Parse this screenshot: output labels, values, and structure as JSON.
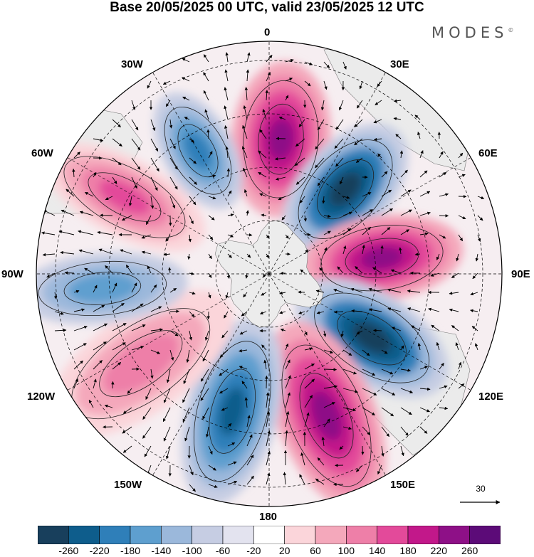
{
  "title": "Base 20/05/2025 00 UTC, valid 23/05/2025 12 UTC",
  "brand": "MODES",
  "brand_mark": "©",
  "longitude_labels": {
    "lon_0": "0",
    "lon_30e": "30E",
    "lon_60e": "60E",
    "lon_90e": "90E",
    "lon_120e": "120E",
    "lon_150e": "150E",
    "lon_180": "180",
    "lon_150w": "150W",
    "lon_120w": "120W",
    "lon_90w": "90W",
    "lon_60w": "60W",
    "lon_30w": "30W"
  },
  "reference_vector": {
    "value": "30"
  },
  "colorbar": {
    "colors": [
      "#183f5c",
      "#0e5d8c",
      "#2f7fb9",
      "#5e9fcf",
      "#9bb8db",
      "#c6cde3",
      "#e3e3ef",
      "#ffffff",
      "#fbd5da",
      "#f4a8bb",
      "#ee7fa8",
      "#e34a9a",
      "#c2188a",
      "#8e1087",
      "#5c0b78"
    ],
    "labels": [
      "-260",
      "-220",
      "-180",
      "-140",
      "-100",
      "-60",
      "-20",
      "20",
      "60",
      "100",
      "140",
      "180",
      "220",
      "260"
    ]
  },
  "map_colors": {
    "land": "#ebebeb",
    "antarctica": "#ececec",
    "grid": "#000000",
    "vectors": "#000000"
  }
}
